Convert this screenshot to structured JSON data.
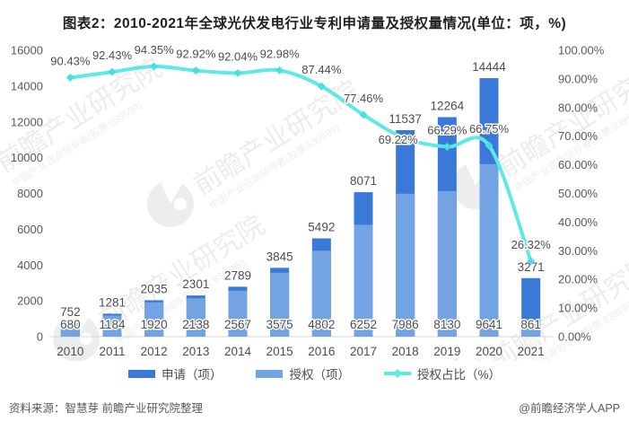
{
  "chart_data": {
    "type": "bar",
    "combo": "stacked bars (left axis) + smoothed line (right axis)",
    "title": "图表2：2010-2021年全球光伏发电行业专利申请量及授权量情况(单位：项，%)",
    "categories": [
      "2010",
      "2011",
      "2012",
      "2013",
      "2014",
      "2015",
      "2016",
      "2017",
      "2018",
      "2019",
      "2020",
      "2021"
    ],
    "series": [
      {
        "name": "申请（项）",
        "type": "bar",
        "axis": "left",
        "color": "#3b79d8",
        "values": [
          752,
          1281,
          2035,
          2301,
          2789,
          3845,
          5492,
          8071,
          11537,
          12264,
          14444,
          3271
        ],
        "labels": [
          "752",
          "1281",
          "2035",
          "2301",
          "2789",
          "3845",
          "5492",
          "8071",
          "11537",
          "12264",
          "14444",
          "3271"
        ]
      },
      {
        "name": "授权（项）",
        "type": "bar",
        "axis": "left",
        "color": "#74a3e4",
        "values": [
          680,
          1184,
          1920,
          2138,
          2567,
          3575,
          4802,
          6252,
          7986,
          8130,
          9641,
          861
        ],
        "labels": [
          "680",
          "1184",
          "1920",
          "2138",
          "2567",
          "3575",
          "4802",
          "6252",
          "7986",
          "8130",
          "9641",
          "861"
        ]
      },
      {
        "name": "授权占比（%）",
        "type": "line",
        "axis": "right",
        "color": "#5fe8e8",
        "values": [
          90.43,
          92.43,
          94.35,
          92.92,
          92.04,
          92.98,
          87.44,
          77.46,
          69.22,
          66.29,
          66.75,
          26.32
        ],
        "labels": [
          "90.43%",
          "92.43%",
          "94.35%",
          "92.92%",
          "92.04%",
          "92.98%",
          "87.44%",
          "77.46%",
          "69.22%",
          "66.29%",
          "66.75%",
          "26.32%"
        ]
      }
    ],
    "left_axis": {
      "min": 0,
      "max": 16000,
      "step": 2000,
      "ticks": [
        "0",
        "2000",
        "4000",
        "6000",
        "8000",
        "10000",
        "12000",
        "14000",
        "16000"
      ]
    },
    "right_axis": {
      "min": 0,
      "max": 100,
      "step": 10,
      "ticks": [
        "0.00%",
        "10.00%",
        "20.00%",
        "30.00%",
        "40.00%",
        "50.00%",
        "60.00%",
        "70.00%",
        "80.00%",
        "90.00%",
        "100.00%"
      ]
    },
    "grid": false,
    "legend_position": "bottom"
  },
  "legend": [
    {
      "label": "申请（项）",
      "color": "#3b79d8",
      "shape": "bar"
    },
    {
      "label": "授权（项）",
      "color": "#74a3e4",
      "shape": "bar"
    },
    {
      "label": "授权占比（%）",
      "color": "#5fe8e8",
      "shape": "line"
    }
  ],
  "footer": {
    "source": "资料来源：智慧芽 前瞻产业研究院整理",
    "credit": "@前瞻经济学人APP"
  },
  "watermark": {
    "main": "前瞻产业研究院",
    "sub": "中国产业咨询领导者(股票:839599)"
  }
}
